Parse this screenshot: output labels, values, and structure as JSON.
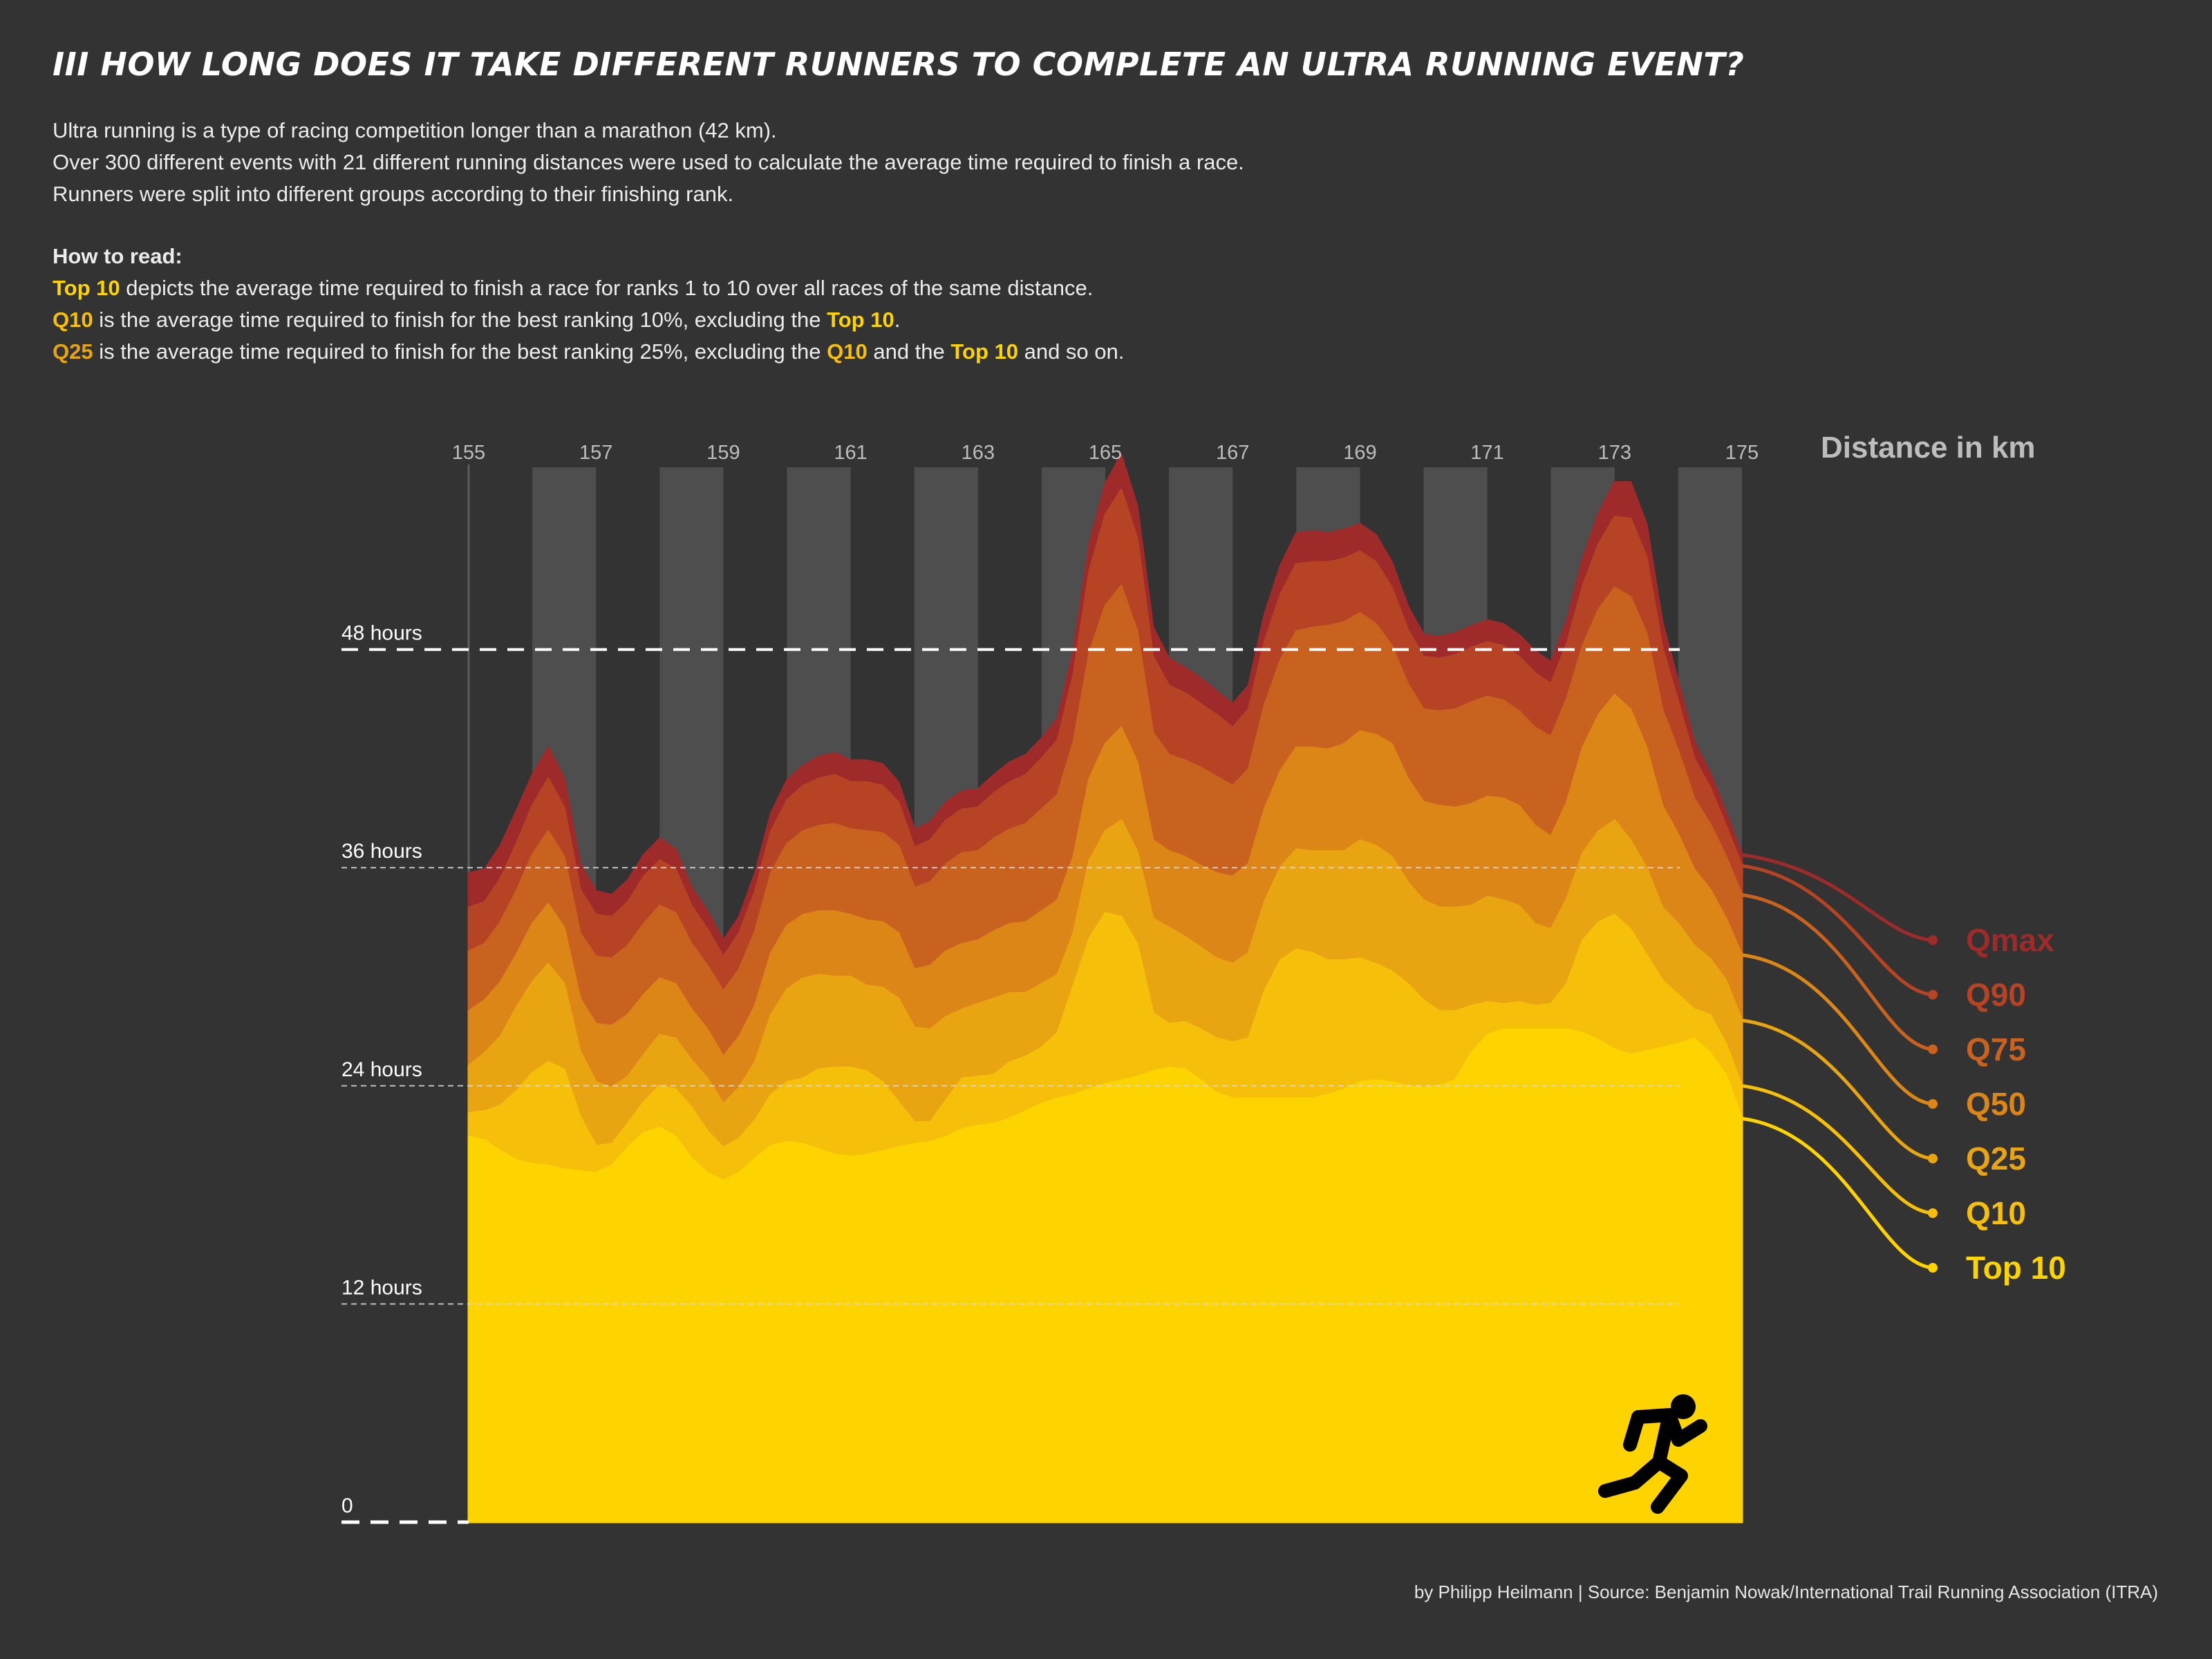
{
  "title": "III HOW LONG DOES IT TAKE DIFFERENT RUNNERS TO COMPLETE AN ULTRA RUNNING EVENT?",
  "intro": [
    "Ultra running is a type of racing competition longer than a marathon (42 km).",
    "Over 300 different events with 21 different running distances were used to calculate the average time required to finish a race.",
    "Runners were split into different groups according to their finishing rank."
  ],
  "howto": {
    "heading": "How to read:",
    "line1": {
      "hl1": "Top 10",
      "rest": " depicts the average time required to finish a race for ranks 1 to 10 over all races of the same distance."
    },
    "line2": {
      "hl1": "Q10",
      "mid": " is the average time required to finish for the best ranking 10%, excluding the ",
      "hl2": "Top 10",
      "end": "."
    },
    "line3": {
      "hl1": "Q25",
      "mid1": " is the average time required to finish for the best ranking 25%, excluding the ",
      "hl2": "Q10",
      "mid2": " and the ",
      "hl3": "Top 10",
      "end": " and so on."
    }
  },
  "credit": "by Philipp Heilmann | Source: Benjamin Nowak/International Trail Running Association (ITRA)",
  "colors": {
    "background": "#333333",
    "band": "#4e4e4e",
    "top10": "#fdd400",
    "q10": "#f6bf0a",
    "q25": "#e9a412",
    "q50": "#dc8618",
    "q75": "#c9621e",
    "q90": "#b64424",
    "qmax": "#9e2a2a"
  },
  "icons": {
    "runner": "running-person-icon"
  },
  "chart_data": {
    "type": "area",
    "stacked": true,
    "xlabel": "Distance in km",
    "x_tick_labels": [
      "155",
      "157",
      "159",
      "161",
      "163",
      "165",
      "167",
      "169",
      "171",
      "173",
      "175"
    ],
    "y_tick_labels": [
      "0",
      "12 hours",
      "24 hours",
      "36 hours",
      "48 hours"
    ],
    "y_ticks": [
      0,
      12,
      24,
      36,
      48
    ],
    "xlim": [
      155,
      175
    ],
    "ylim": [
      0,
      58
    ],
    "x": [
      155,
      155.25,
      155.5,
      155.75,
      156,
      156.25,
      156.5,
      156.75,
      157,
      157.25,
      157.5,
      157.75,
      158,
      158.25,
      158.5,
      158.75,
      159,
      159.25,
      159.5,
      159.75,
      160,
      160.25,
      160.5,
      160.75,
      161,
      161.25,
      161.5,
      161.75,
      162,
      162.25,
      162.5,
      162.75,
      163,
      163.25,
      163.5,
      163.75,
      164,
      164.25,
      164.5,
      164.75,
      165,
      165.25,
      165.5,
      165.75,
      166,
      166.25,
      166.5,
      166.75,
      167,
      167.25,
      167.5,
      167.75,
      168,
      168.25,
      168.5,
      168.75,
      169,
      169.25,
      169.5,
      169.75,
      170,
      170.25,
      170.5,
      170.75,
      171,
      171.25,
      171.5,
      171.75,
      172,
      172.25,
      172.5,
      172.75,
      173,
      173.25,
      173.5,
      173.75,
      174,
      174.25,
      174.5,
      174.75,
      175
    ],
    "series": [
      {
        "name": "Top 10",
        "values": [
          21.2,
          21.0,
          20.4,
          19.9,
          19.7,
          19.6,
          19.4,
          19.3,
          19.2,
          19.6,
          20.6,
          21.4,
          21.7,
          21.2,
          20.0,
          19.2,
          18.8,
          19.2,
          20.0,
          20.7,
          20.9,
          20.8,
          20.5,
          20.2,
          20.1,
          20.2,
          20.4,
          20.6,
          20.8,
          20.9,
          21.2,
          21.6,
          21.8,
          21.9,
          22.2,
          22.6,
          23.0,
          23.3,
          23.5,
          23.8,
          24.1,
          24.3,
          24.5,
          24.8,
          25.0,
          24.9,
          24.3,
          23.6,
          23.3,
          23.3,
          23.3,
          23.3,
          23.3,
          23.3,
          23.5,
          23.8,
          24.2,
          24.3,
          24.2,
          24.0,
          23.9,
          24.0,
          24.3,
          25.8,
          26.8,
          27.1,
          27.1,
          27.1,
          27.1,
          27.1,
          26.9,
          26.5,
          26.0,
          25.7,
          25.9,
          26.1,
          26.3,
          26.6,
          25.8,
          24.6,
          22.2
        ]
      },
      {
        "name": "Q10",
        "values": [
          1.3,
          1.6,
          2.5,
          3.8,
          5.0,
          5.7,
          5.5,
          3.0,
          1.5,
          1.2,
          1.3,
          1.7,
          2.3,
          2.6,
          2.8,
          2.3,
          1.8,
          1.9,
          2.1,
          2.8,
          3.3,
          3.6,
          4.4,
          4.8,
          4.9,
          4.6,
          3.8,
          2.5,
          1.2,
          1.1,
          2.0,
          2.8,
          2.7,
          2.7,
          3.1,
          3.0,
          3.1,
          3.6,
          6.0,
          8.3,
          9.4,
          9.0,
          7.3,
          3.2,
          2.4,
          2.6,
          2.8,
          3.0,
          3.1,
          3.3,
          5.9,
          7.6,
          8.2,
          8.0,
          7.4,
          7.1,
          6.8,
          6.4,
          6.1,
          5.6,
          4.8,
          4.1,
          3.8,
          2.6,
          1.8,
          1.4,
          1.5,
          1.3,
          1.4,
          2.5,
          5.1,
          6.5,
          7.4,
          6.9,
          5.3,
          3.7,
          2.7,
          1.6,
          2.1,
          1.7,
          1.8
        ]
      },
      {
        "name": "Q25",
        "values": [
          2.6,
          3.2,
          3.8,
          4.6,
          5.0,
          5.4,
          4.7,
          3.6,
          3.5,
          3.1,
          2.6,
          2.6,
          2.8,
          2.8,
          2.6,
          2.9,
          2.4,
          2.8,
          3.2,
          4.4,
          5.1,
          5.5,
          5.2,
          5.0,
          5.0,
          4.7,
          5.2,
          5.7,
          5.2,
          5.1,
          4.6,
          3.8,
          4.0,
          4.2,
          3.8,
          3.5,
          3.5,
          3.2,
          2.9,
          4.3,
          4.5,
          5.3,
          5.1,
          5.2,
          5.3,
          4.7,
          4.5,
          4.4,
          4.3,
          4.7,
          4.9,
          5.1,
          5.5,
          5.6,
          6.0,
          6.0,
          6.5,
          6.5,
          6.3,
          5.6,
          5.5,
          5.7,
          5.7,
          5.5,
          5.8,
          5.7,
          5.3,
          4.5,
          4.1,
          4.7,
          4.8,
          5.0,
          5.2,
          4.9,
          4.8,
          4.0,
          3.9,
          3.5,
          3.1,
          3.5,
          3.6
        ]
      },
      {
        "name": "Q50",
        "values": [
          3.0,
          2.9,
          3.0,
          2.9,
          3.2,
          3.3,
          3.1,
          2.9,
          3.2,
          3.4,
          3.4,
          3.3,
          3.1,
          3.0,
          2.8,
          2.7,
          2.6,
          2.8,
          3.1,
          3.4,
          3.5,
          3.5,
          3.5,
          3.6,
          3.4,
          3.6,
          3.6,
          3.6,
          3.2,
          3.5,
          3.6,
          3.6,
          3.5,
          3.7,
          3.8,
          3.9,
          4.0,
          4.1,
          4.2,
          4.5,
          4.8,
          5.1,
          4.9,
          4.3,
          4.2,
          4.4,
          4.5,
          4.7,
          4.8,
          4.9,
          5.1,
          5.3,
          5.6,
          5.7,
          5.6,
          5.9,
          6.0,
          6.1,
          6.2,
          5.7,
          5.4,
          5.6,
          5.5,
          5.6,
          5.5,
          5.6,
          5.5,
          5.4,
          5.1,
          5.3,
          5.8,
          6.4,
          6.9,
          7.2,
          6.6,
          5.6,
          4.9,
          4.2,
          3.8,
          3.4,
          3.6
        ]
      },
      {
        "name": "Q75",
        "values": [
          3.3,
          3.1,
          3.3,
          3.5,
          3.8,
          4.0,
          3.9,
          3.6,
          3.7,
          3.7,
          3.8,
          3.9,
          4.0,
          3.9,
          3.6,
          3.5,
          3.6,
          3.7,
          4.1,
          4.4,
          4.5,
          4.6,
          4.7,
          4.8,
          4.7,
          4.9,
          4.9,
          4.8,
          4.5,
          4.6,
          4.8,
          5.0,
          4.9,
          5.1,
          5.2,
          5.4,
          5.6,
          5.8,
          6.3,
          6.9,
          7.6,
          7.8,
          7.2,
          5.9,
          5.3,
          5.3,
          5.4,
          5.3,
          5.0,
          5.2,
          5.7,
          6.1,
          6.4,
          6.6,
          6.8,
          6.7,
          6.5,
          6.1,
          5.4,
          5.2,
          5.1,
          5.2,
          5.4,
          5.6,
          5.5,
          5.4,
          5.2,
          5.4,
          5.5,
          5.7,
          5.6,
          5.8,
          5.9,
          6.2,
          6.3,
          5.3,
          4.6,
          3.9,
          3.6,
          3.4,
          3.3
        ]
      },
      {
        "name": "Q90",
        "values": [
          2.4,
          2.3,
          2.4,
          2.6,
          2.7,
          2.9,
          2.7,
          2.4,
          2.3,
          2.3,
          2.4,
          2.6,
          2.5,
          2.4,
          2.1,
          2.0,
          1.9,
          2.0,
          2.2,
          2.3,
          2.4,
          2.5,
          2.6,
          2.7,
          2.6,
          2.7,
          2.6,
          2.4,
          2.2,
          2.3,
          2.4,
          2.4,
          2.4,
          2.5,
          2.6,
          2.7,
          2.8,
          3.0,
          3.7,
          4.5,
          5.0,
          5.3,
          5.1,
          4.2,
          3.8,
          3.7,
          3.5,
          3.4,
          3.2,
          3.3,
          3.5,
          3.6,
          3.7,
          3.6,
          3.5,
          3.5,
          3.4,
          3.4,
          3.2,
          3.0,
          2.9,
          2.9,
          3.0,
          3.0,
          3.0,
          3.0,
          3.0,
          3.0,
          2.9,
          3.0,
          3.3,
          3.6,
          3.9,
          4.3,
          4.2,
          3.4,
          2.7,
          2.2,
          2.0,
          1.7,
          1.6
        ]
      },
      {
        "name": "Qmax",
        "values": [
          1.9,
          1.8,
          1.8,
          1.8,
          1.7,
          1.7,
          1.6,
          1.4,
          1.3,
          1.2,
          1.2,
          1.2,
          1.2,
          1.1,
          1.0,
          1.0,
          0.9,
          0.9,
          1.0,
          1.0,
          1.1,
          1.1,
          1.2,
          1.2,
          1.2,
          1.2,
          1.2,
          1.1,
          1.0,
          1.0,
          1.0,
          1.0,
          1.0,
          1.0,
          1.1,
          1.1,
          1.1,
          1.2,
          1.3,
          1.5,
          1.7,
          1.9,
          1.8,
          1.6,
          1.5,
          1.4,
          1.4,
          1.3,
          1.3,
          1.3,
          1.5,
          1.6,
          1.7,
          1.7,
          1.6,
          1.6,
          1.5,
          1.5,
          1.4,
          1.3,
          1.2,
          1.2,
          1.2,
          1.2,
          1.2,
          1.2,
          1.2,
          1.2,
          1.2,
          1.3,
          1.5,
          1.7,
          1.9,
          2.0,
          1.8,
          1.4,
          1.1,
          0.9,
          0.8,
          0.7,
          0.6
        ]
      }
    ]
  }
}
